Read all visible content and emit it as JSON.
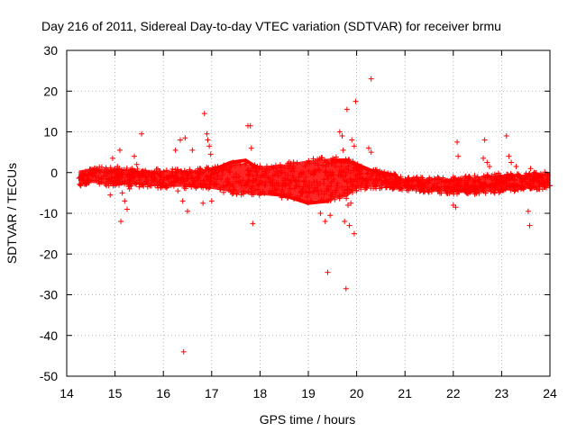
{
  "chart_data": {
    "type": "scatter",
    "title": "Day 216 of 2011, Sidereal Day-to-day VTEC variation (SDTVAR) for receiver brmu",
    "xlabel": "GPS time / hours",
    "ylabel": "SDTVAR / TECUs",
    "xlim": [
      14,
      24
    ],
    "ylim": [
      -50,
      30
    ],
    "xticks": [
      14,
      15,
      16,
      17,
      18,
      19,
      20,
      21,
      22,
      23,
      24
    ],
    "yticks": [
      -50,
      -40,
      -30,
      -20,
      -10,
      0,
      10,
      20,
      30
    ],
    "grid": true,
    "marker": "+",
    "color": "#ff0000",
    "dense_band": {
      "description": "dense cloud of points forming a band around zero",
      "x": [
        14.25,
        14.5,
        15.0,
        15.5,
        16.0,
        16.5,
        17.0,
        17.5,
        18.0,
        18.5,
        19.0,
        19.5,
        19.8,
        20.0,
        20.3,
        20.6,
        21.0,
        21.5,
        22.0,
        22.5,
        23.0,
        23.5,
        24.0
      ],
      "upper": [
        0.5,
        1.0,
        1.0,
        0.5,
        0.5,
        0.5,
        1.0,
        2.5,
        1.5,
        2.0,
        3.0,
        3.5,
        3.5,
        2.0,
        0.5,
        0.0,
        -1.5,
        -1.5,
        -1.5,
        -1.0,
        -0.5,
        -0.5,
        0.0
      ],
      "lower": [
        -3.0,
        -2.5,
        -3.0,
        -3.0,
        -3.5,
        -3.5,
        -4.0,
        -5.0,
        -5.5,
        -6.0,
        -7.0,
        -6.5,
        -6.0,
        -4.0,
        -3.5,
        -3.5,
        -4.0,
        -4.5,
        -5.0,
        -5.0,
        -4.5,
        -4.0,
        -3.5
      ]
    },
    "arcs": [
      {
        "x": [
          17.0,
          17.4,
          17.7,
          17.9
        ],
        "y": [
          0.5,
          2.5,
          3.0,
          1.5
        ]
      },
      {
        "x": [
          18.2,
          18.6,
          19.0,
          19.4
        ],
        "y": [
          -5.0,
          -6.0,
          -7.5,
          -7.0
        ]
      },
      {
        "x": [
          19.5,
          19.9,
          20.3,
          20.7
        ],
        "y": [
          3.0,
          2.5,
          0.5,
          -0.5
        ]
      },
      {
        "x": [
          22.0,
          22.4,
          22.8,
          23.2
        ],
        "y": [
          -4.5,
          -4.0,
          -3.0,
          -1.5
        ]
      }
    ],
    "outliers": [
      {
        "x": 14.3,
        "y": -0.5
      },
      {
        "x": 14.9,
        "y": -5.5
      },
      {
        "x": 14.95,
        "y": 3.5
      },
      {
        "x": 15.05,
        "y": 1.5
      },
      {
        "x": 15.1,
        "y": 5.5
      },
      {
        "x": 15.12,
        "y": -12.0
      },
      {
        "x": 15.15,
        "y": -5.0
      },
      {
        "x": 15.2,
        "y": -7.0
      },
      {
        "x": 15.25,
        "y": -9.0
      },
      {
        "x": 15.3,
        "y": -4.0
      },
      {
        "x": 15.35,
        "y": 1.0
      },
      {
        "x": 15.4,
        "y": 4.0
      },
      {
        "x": 15.45,
        "y": 2.0
      },
      {
        "x": 15.5,
        "y": -3.5
      },
      {
        "x": 15.55,
        "y": 9.5
      },
      {
        "x": 16.25,
        "y": 5.5
      },
      {
        "x": 16.3,
        "y": -4.5
      },
      {
        "x": 16.35,
        "y": 8.0
      },
      {
        "x": 16.4,
        "y": -7.0
      },
      {
        "x": 16.42,
        "y": -44.0
      },
      {
        "x": 16.45,
        "y": 8.5
      },
      {
        "x": 16.5,
        "y": -9.5
      },
      {
        "x": 16.55,
        "y": -3.0
      },
      {
        "x": 16.6,
        "y": 5.5
      },
      {
        "x": 16.85,
        "y": 14.5
      },
      {
        "x": 16.9,
        "y": 9.5
      },
      {
        "x": 16.92,
        "y": 8.0
      },
      {
        "x": 16.95,
        "y": 6.5
      },
      {
        "x": 16.98,
        "y": 4.5
      },
      {
        "x": 17.0,
        "y": -7.0
      },
      {
        "x": 16.82,
        "y": -7.5
      },
      {
        "x": 17.75,
        "y": 11.5
      },
      {
        "x": 17.8,
        "y": 11.5
      },
      {
        "x": 17.82,
        "y": 6.0
      },
      {
        "x": 17.85,
        "y": -12.5
      },
      {
        "x": 19.25,
        "y": -10.0
      },
      {
        "x": 19.35,
        "y": -12.0
      },
      {
        "x": 19.4,
        "y": -24.5
      },
      {
        "x": 19.45,
        "y": -10.5
      },
      {
        "x": 19.65,
        "y": 10.0
      },
      {
        "x": 19.7,
        "y": 9.0
      },
      {
        "x": 19.72,
        "y": 5.5
      },
      {
        "x": 19.75,
        "y": -12.0
      },
      {
        "x": 19.78,
        "y": -28.5
      },
      {
        "x": 19.8,
        "y": 15.5
      },
      {
        "x": 19.82,
        "y": -8.0
      },
      {
        "x": 19.85,
        "y": -13.0
      },
      {
        "x": 19.88,
        "y": -7.5
      },
      {
        "x": 19.9,
        "y": 8.0
      },
      {
        "x": 19.95,
        "y": 6.5
      },
      {
        "x": 19.98,
        "y": 17.5
      },
      {
        "x": 19.95,
        "y": -15.0
      },
      {
        "x": 20.0,
        "y": -4.5
      },
      {
        "x": 20.25,
        "y": 6.0
      },
      {
        "x": 20.3,
        "y": 5.0
      },
      {
        "x": 20.3,
        "y": 23.0
      },
      {
        "x": 22.0,
        "y": -8.0
      },
      {
        "x": 22.05,
        "y": -8.5
      },
      {
        "x": 22.08,
        "y": 7.5
      },
      {
        "x": 22.1,
        "y": 4.0
      },
      {
        "x": 22.62,
        "y": 3.5
      },
      {
        "x": 22.65,
        "y": 8.0
      },
      {
        "x": 22.7,
        "y": 2.5
      },
      {
        "x": 22.75,
        "y": 1.5
      },
      {
        "x": 23.1,
        "y": 9.0
      },
      {
        "x": 23.15,
        "y": 4.0
      },
      {
        "x": 23.2,
        "y": 2.5
      },
      {
        "x": 23.3,
        "y": 1.5
      },
      {
        "x": 23.55,
        "y": -9.5
      },
      {
        "x": 23.58,
        "y": -13.0
      },
      {
        "x": 23.6,
        "y": 1.0
      },
      {
        "x": 23.95,
        "y": -1.0
      }
    ]
  }
}
